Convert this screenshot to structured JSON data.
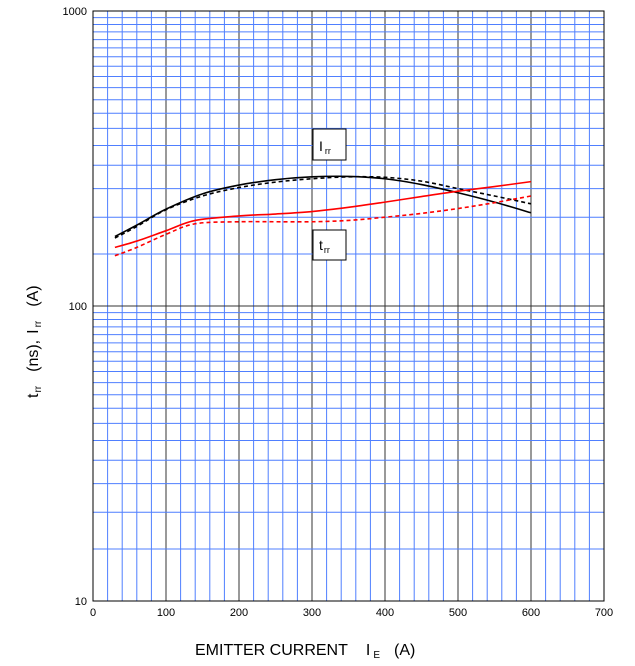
{
  "chart_data": {
    "type": "line",
    "xlabel": {
      "main": "EMITTER CURRENT",
      "symbol": "I",
      "subscript": "E",
      "unit": "(A)"
    },
    "ylabel": {
      "trr_symbol": "t",
      "trr_subscript": "rr",
      "trr_unit": "(ns),",
      "irr_symbol": "I",
      "irr_subscript": "rr",
      "irr_unit": "(A)"
    },
    "xlim": [
      0,
      700
    ],
    "ylim": [
      10,
      1000
    ],
    "yscale": "log",
    "grid": true,
    "x_ticks": [
      "0",
      "100",
      "200",
      "300",
      "400",
      "500",
      "600",
      "700"
    ],
    "y_ticks": [
      "10",
      "100",
      "1000"
    ],
    "annotations": [
      {
        "symbol": "I",
        "subscript": "rr",
        "refers_to": "Irr"
      },
      {
        "symbol": "t",
        "subscript": "rr",
        "refers_to": "trr"
      }
    ],
    "series": [
      {
        "id": "irr_solid",
        "group": "Irr",
        "color": "#000000",
        "style": "solid",
        "x": [
          30,
          60,
          100,
          150,
          200,
          250,
          300,
          350,
          400,
          450,
          500,
          550,
          600
        ],
        "y": [
          172,
          188,
          213,
          240,
          257,
          268,
          274,
          275,
          270,
          258,
          242,
          225,
          207
        ]
      },
      {
        "id": "irr_dashed",
        "group": "Irr",
        "color": "#000000",
        "style": "dashed",
        "x": [
          30,
          60,
          100,
          150,
          200,
          250,
          300,
          350,
          400,
          450,
          500,
          550,
          600
        ],
        "y": [
          170,
          186,
          212,
          236,
          252,
          263,
          270,
          274,
          273,
          265,
          250,
          236,
          222
        ]
      },
      {
        "id": "trr_solid",
        "group": "trr",
        "color": "#ff0000",
        "style": "solid",
        "x": [
          30,
          60,
          100,
          140,
          200,
          250,
          300,
          350,
          400,
          450,
          500,
          550,
          600
        ],
        "y": [
          158,
          166,
          180,
          195,
          202,
          205,
          209,
          216,
          225,
          235,
          245,
          254,
          264
        ]
      },
      {
        "id": "trr_dashed",
        "group": "trr",
        "color": "#ff0000",
        "style": "dashed",
        "x": [
          30,
          60,
          100,
          140,
          200,
          250,
          300,
          350,
          400,
          450,
          500,
          550,
          600
        ],
        "y": [
          148,
          158,
          175,
          190,
          193,
          193,
          193,
          195,
          200,
          206,
          214,
          224,
          236
        ]
      }
    ]
  }
}
